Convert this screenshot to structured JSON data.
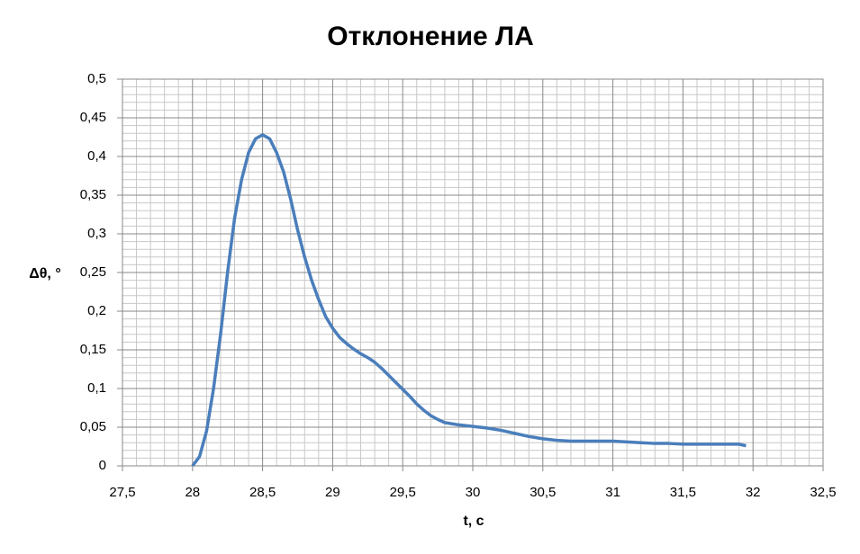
{
  "chart_data": {
    "type": "line",
    "title": "Отклонение ЛА",
    "x_label": "t, c",
    "y_label": "Δθ, °",
    "x": [
      28.0,
      28.05,
      28.1,
      28.15,
      28.2,
      28.25,
      28.3,
      28.35,
      28.4,
      28.45,
      28.5,
      28.55,
      28.6,
      28.65,
      28.7,
      28.75,
      28.8,
      28.85,
      28.9,
      28.95,
      29.0,
      29.05,
      29.1,
      29.15,
      29.2,
      29.25,
      29.3,
      29.35,
      29.4,
      29.45,
      29.5,
      29.55,
      29.6,
      29.65,
      29.7,
      29.75,
      29.8,
      29.9,
      30.0,
      30.1,
      30.2,
      30.3,
      30.4,
      30.5,
      30.6,
      30.7,
      30.8,
      30.9,
      31.0,
      31.1,
      31.2,
      31.3,
      31.4,
      31.5,
      31.6,
      31.7,
      31.8,
      31.9,
      31.95
    ],
    "values": [
      0,
      0.012,
      0.045,
      0.1,
      0.17,
      0.25,
      0.32,
      0.37,
      0.405,
      0.423,
      0.428,
      0.423,
      0.405,
      0.38,
      0.345,
      0.305,
      0.27,
      0.24,
      0.215,
      0.193,
      0.178,
      0.166,
      0.158,
      0.151,
      0.145,
      0.14,
      0.134,
      0.126,
      0.117,
      0.108,
      0.099,
      0.09,
      0.08,
      0.072,
      0.065,
      0.06,
      0.056,
      0.053,
      0.051,
      0.049,
      0.046,
      0.042,
      0.038,
      0.035,
      0.033,
      0.032,
      0.032,
      0.032,
      0.032,
      0.031,
      0.03,
      0.029,
      0.029,
      0.028,
      0.028,
      0.028,
      0.028,
      0.028,
      0.026
    ],
    "color": "#4a7ebb",
    "xlim": [
      27.5,
      32.5
    ],
    "xticks": [
      {
        "value": 27.5,
        "label": "27,5"
      },
      28,
      {
        "value": 28.5,
        "label": "28,5"
      },
      29,
      {
        "value": 29.5,
        "label": "29,5"
      },
      30,
      {
        "value": 30.5,
        "label": "30,5"
      },
      31,
      {
        "value": 31.5,
        "label": "31,5"
      },
      32,
      {
        "value": 32.5,
        "label": "32,5"
      }
    ],
    "ylim": [
      0,
      0.5
    ],
    "yticks": [
      0,
      {
        "value": 0.05,
        "label": "0,05"
      },
      {
        "value": 0.1,
        "label": "0,1"
      },
      {
        "value": 0.15,
        "label": "0,15"
      },
      {
        "value": 0.2,
        "label": "0,2"
      },
      {
        "value": 0.25,
        "label": "0,25"
      },
      {
        "value": 0.3,
        "label": "0,3"
      },
      {
        "value": 0.35,
        "label": "0,35"
      },
      {
        "value": 0.4,
        "label": "0,4"
      },
      {
        "value": 0.45,
        "label": "0,45"
      },
      {
        "value": 0.5,
        "label": "0,5"
      }
    ],
    "grid": true,
    "minor_grid": {
      "x": 5,
      "y": 5
    }
  }
}
